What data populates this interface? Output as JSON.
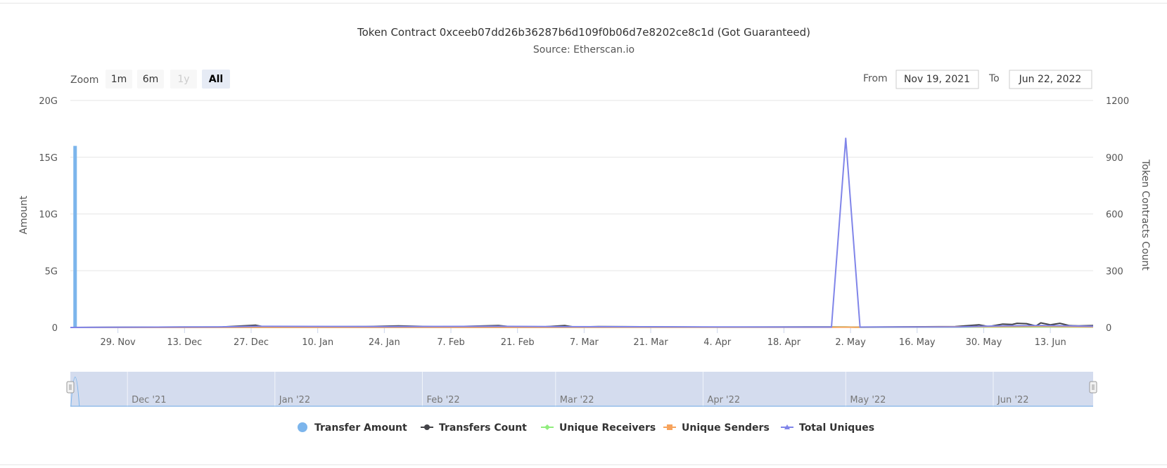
{
  "chart_data": {
    "type": "line",
    "title": "Token Contract 0xceeb07dd26b36287b6d109f0b06d7e8202ce8c1d (Got Guaranteed)",
    "subtitle": "Source: Etherscan.io",
    "x_start": "2021-11-19",
    "x_end": "2022-06-22",
    "x_tick_labels": [
      "29. Nov",
      "13. Dec",
      "27. Dec",
      "10. Jan",
      "24. Jan",
      "7. Feb",
      "21. Feb",
      "7. Mar",
      "21. Mar",
      "4. Apr",
      "18. Apr",
      "2. May",
      "16. May",
      "30. May",
      "13. Jun"
    ],
    "y_left": {
      "label": "Amount",
      "ticks": [
        "0",
        "5G",
        "10G",
        "15G",
        "20G"
      ],
      "range": [
        0,
        20000000000
      ]
    },
    "y_right": {
      "label": "Token Contracts Count",
      "ticks": [
        "0",
        "300",
        "600",
        "900",
        "1200"
      ],
      "range": [
        0,
        1200
      ]
    },
    "grid": true,
    "legend_position": "bottom",
    "series": [
      {
        "name": "Transfer Amount",
        "kind": "column",
        "axis": "left",
        "color": "#7cb5ec",
        "points": [
          [
            "2021-11-20",
            16000000000
          ]
        ]
      },
      {
        "name": "Transfers Count",
        "kind": "line",
        "axis": "right",
        "color": "#434348",
        "points": [
          [
            "2021-11-19",
            0
          ],
          [
            "2021-12-21",
            3
          ],
          [
            "2021-12-28",
            12
          ],
          [
            "2021-12-30",
            2
          ],
          [
            "2022-01-20",
            5
          ],
          [
            "2022-01-27",
            8
          ],
          [
            "2022-02-06",
            3
          ],
          [
            "2022-02-17",
            10
          ],
          [
            "2022-02-20",
            3
          ],
          [
            "2022-02-27",
            4
          ],
          [
            "2022-03-03",
            10
          ],
          [
            "2022-03-05",
            2
          ],
          [
            "2022-03-10",
            5
          ],
          [
            "2022-04-01",
            2
          ],
          [
            "2022-04-28",
            3
          ],
          [
            "2022-05-03",
            2
          ],
          [
            "2022-05-24",
            5
          ],
          [
            "2022-05-29",
            14
          ],
          [
            "2022-05-31",
            5
          ],
          [
            "2022-06-03",
            18
          ],
          [
            "2022-06-05",
            16
          ],
          [
            "2022-06-06",
            22
          ],
          [
            "2022-06-08",
            20
          ],
          [
            "2022-06-10",
            8
          ],
          [
            "2022-06-11",
            24
          ],
          [
            "2022-06-13",
            14
          ],
          [
            "2022-06-15",
            22
          ],
          [
            "2022-06-17",
            10
          ],
          [
            "2022-06-19",
            8
          ],
          [
            "2022-06-22",
            10
          ]
        ]
      },
      {
        "name": "Unique Receivers",
        "kind": "line",
        "axis": "right",
        "color": "#90ed7d",
        "points": [
          [
            "2021-11-19",
            0
          ],
          [
            "2022-04-28",
            2
          ],
          [
            "2022-05-01",
            3
          ],
          [
            "2022-05-03",
            1
          ],
          [
            "2022-06-11",
            3
          ],
          [
            "2022-06-22",
            2
          ]
        ]
      },
      {
        "name": "Unique Senders",
        "kind": "line",
        "axis": "right",
        "color": "#f7a35c",
        "points": [
          [
            "2021-11-19",
            0
          ],
          [
            "2022-04-28",
            1
          ],
          [
            "2022-05-01",
            2
          ],
          [
            "2022-05-03",
            1
          ],
          [
            "2022-06-03",
            5
          ],
          [
            "2022-06-11",
            6
          ],
          [
            "2022-06-22",
            3
          ]
        ]
      },
      {
        "name": "Total Uniques",
        "kind": "line",
        "axis": "right",
        "color": "#8085e9",
        "points": [
          [
            "2021-11-19",
            0
          ],
          [
            "2021-12-20",
            3
          ],
          [
            "2021-12-28",
            6
          ],
          [
            "2022-01-25",
            5
          ],
          [
            "2022-02-17",
            6
          ],
          [
            "2022-03-03",
            4
          ],
          [
            "2022-04-28",
            2
          ],
          [
            "2022-05-01",
            1000
          ],
          [
            "2022-05-04",
            2
          ],
          [
            "2022-05-25",
            3
          ],
          [
            "2022-05-29",
            6
          ],
          [
            "2022-06-03",
            8
          ],
          [
            "2022-06-11",
            10
          ],
          [
            "2022-06-17",
            8
          ],
          [
            "2022-06-22",
            6
          ]
        ]
      }
    ]
  },
  "range_selector": {
    "zoom_label": "Zoom",
    "buttons": [
      {
        "label": "1m",
        "state": "normal"
      },
      {
        "label": "6m",
        "state": "normal"
      },
      {
        "label": "1y",
        "state": "disabled"
      },
      {
        "label": "All",
        "state": "active"
      }
    ],
    "from_label": "From",
    "from_value": "Nov 19, 2021",
    "to_label": "To",
    "to_value": "Jun 22, 2022"
  },
  "navigator": {
    "labels": [
      "Dec '21",
      "Jan '22",
      "Feb '22",
      "Mar '22",
      "Apr '22",
      "May '22",
      "Jun '22"
    ],
    "line_color": "#7cb5ec",
    "mask_color": "#ccd6eb"
  },
  "legend": [
    {
      "name": "Transfer Amount",
      "symbol": "circle",
      "color": "#7cb5ec"
    },
    {
      "name": "Transfers Count",
      "symbol": "circle-line",
      "color": "#434348"
    },
    {
      "name": "Unique Receivers",
      "symbol": "diamond-line",
      "color": "#90ed7d"
    },
    {
      "name": "Unique Senders",
      "symbol": "square-line",
      "color": "#f7a35c"
    },
    {
      "name": "Total Uniques",
      "symbol": "triangle-line",
      "color": "#8085e9"
    }
  ]
}
